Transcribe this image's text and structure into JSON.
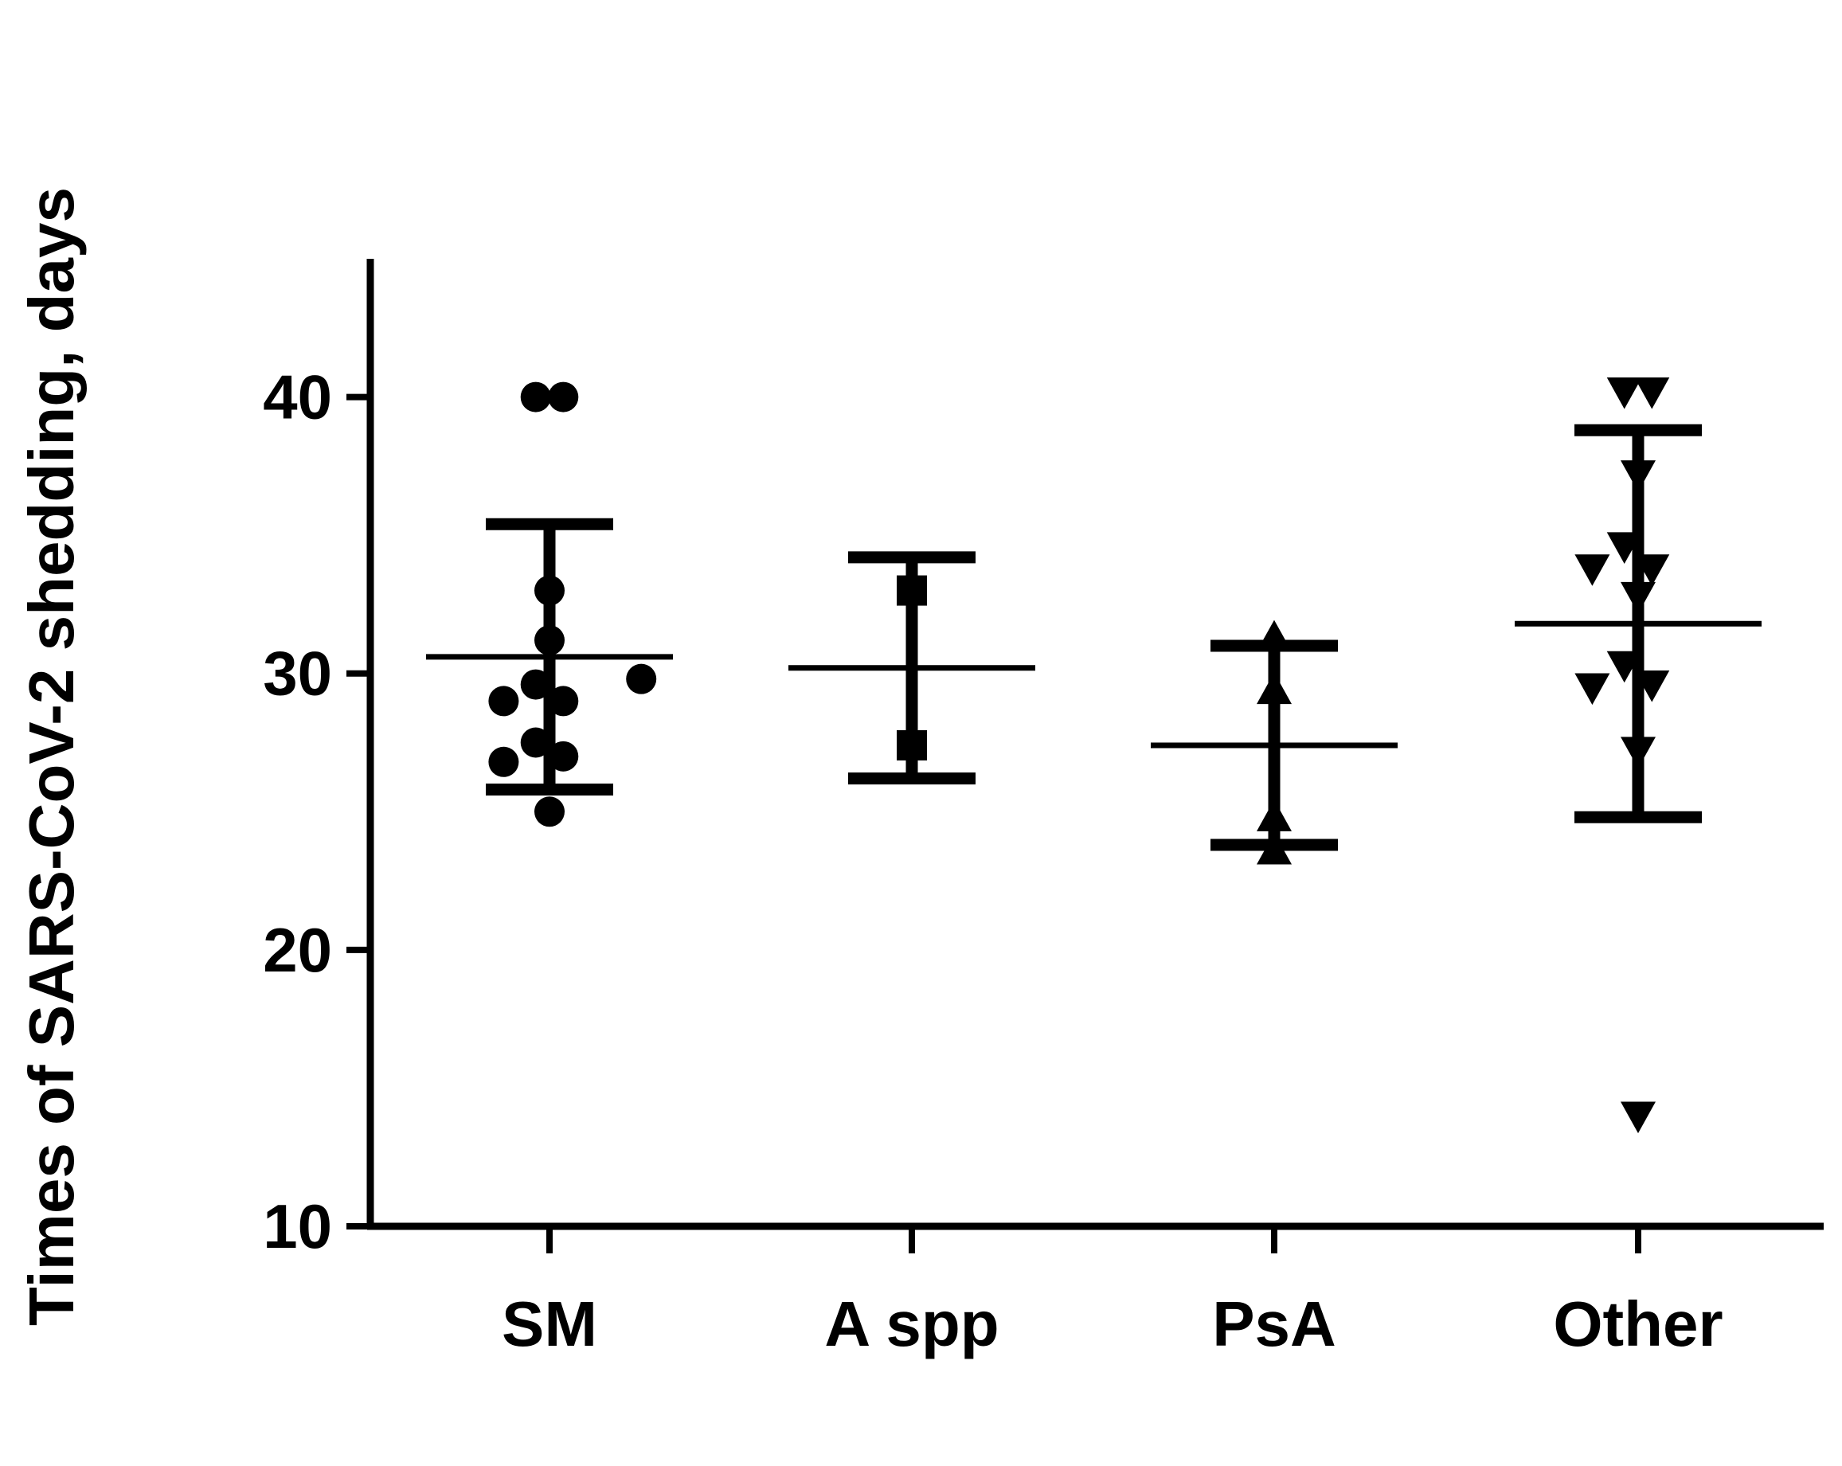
{
  "chart_data": {
    "type": "scatter",
    "title": "",
    "xlabel": "",
    "ylabel": "Times of SARS-CoV-2 shedding, days",
    "ylim": [
      10,
      45
    ],
    "yticks": [
      10,
      20,
      30,
      40
    ],
    "grid": false,
    "categories": [
      "SM",
      "A spp",
      "PsA",
      "Other"
    ],
    "groups": [
      {
        "category": "SM",
        "marker": "circle",
        "points": [
          40,
          40,
          33,
          31.2,
          29.6,
          29,
          29,
          29.8,
          27.5,
          27,
          26.8,
          25
        ],
        "mean": 30.6,
        "sd_low": 25.8,
        "sd_high": 35.4
      },
      {
        "category": "A spp",
        "marker": "square",
        "points": [
          33,
          27.4
        ],
        "mean": 30.2,
        "sd_low": 26.2,
        "sd_high": 34.2
      },
      {
        "category": "PsA",
        "marker": "triangle-up",
        "points": [
          31.3,
          29.4,
          24.8,
          23.6
        ],
        "mean": 27.4,
        "sd_low": 23.8,
        "sd_high": 31
      },
      {
        "category": "Other",
        "marker": "triangle-down",
        "points": [
          40.2,
          40.2,
          37.2,
          34.6,
          33.8,
          33.8,
          32.8,
          30.3,
          29.6,
          29.5,
          27.2,
          14
        ],
        "mean": 31.8,
        "sd_low": 24.8,
        "sd_high": 38.8
      }
    ]
  },
  "colors": {
    "ink": "#000000",
    "background": "#ffffff"
  }
}
